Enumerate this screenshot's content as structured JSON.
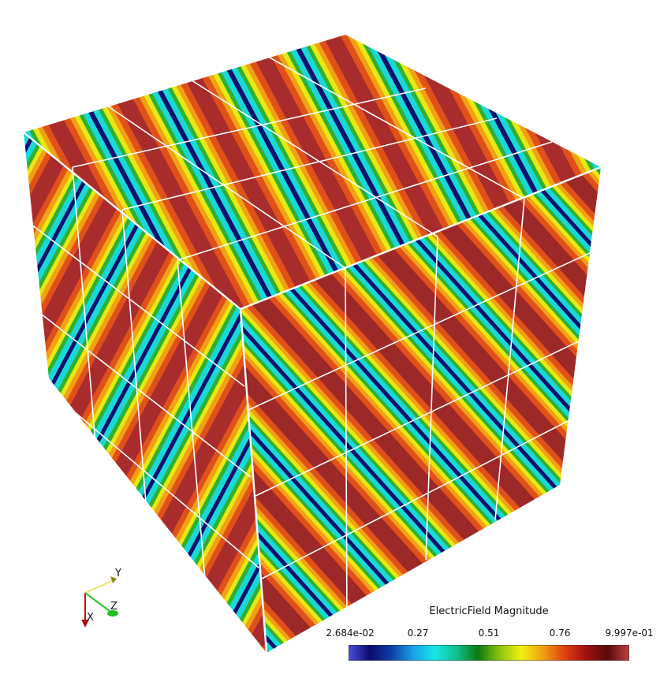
{
  "scene": {
    "colors": {
      "background": "#ffffff",
      "grid_lines": "#ffffff",
      "axis_x": "#d01010",
      "axis_y": "#e8e860",
      "axis_z": "#20c020"
    }
  },
  "colorbar": {
    "title": "ElectricField Magnitude",
    "ticks": [
      "2.684e-02",
      "0.27",
      "0.51",
      "0.76",
      "9.997e-01"
    ],
    "range": [
      0.02684,
      0.9997
    ],
    "colormap": [
      "#4a4fd8",
      "#0a0a6e",
      "#0f3fa8",
      "#1aa0e6",
      "#18e6e6",
      "#10c090",
      "#0a7a10",
      "#8cc410",
      "#f0f010",
      "#f0a010",
      "#e04010",
      "#a01010",
      "#5a0a0a",
      "#c04040"
    ]
  },
  "axes": {
    "x_label": "X",
    "y_label": "Y",
    "z_label": "Z"
  }
}
